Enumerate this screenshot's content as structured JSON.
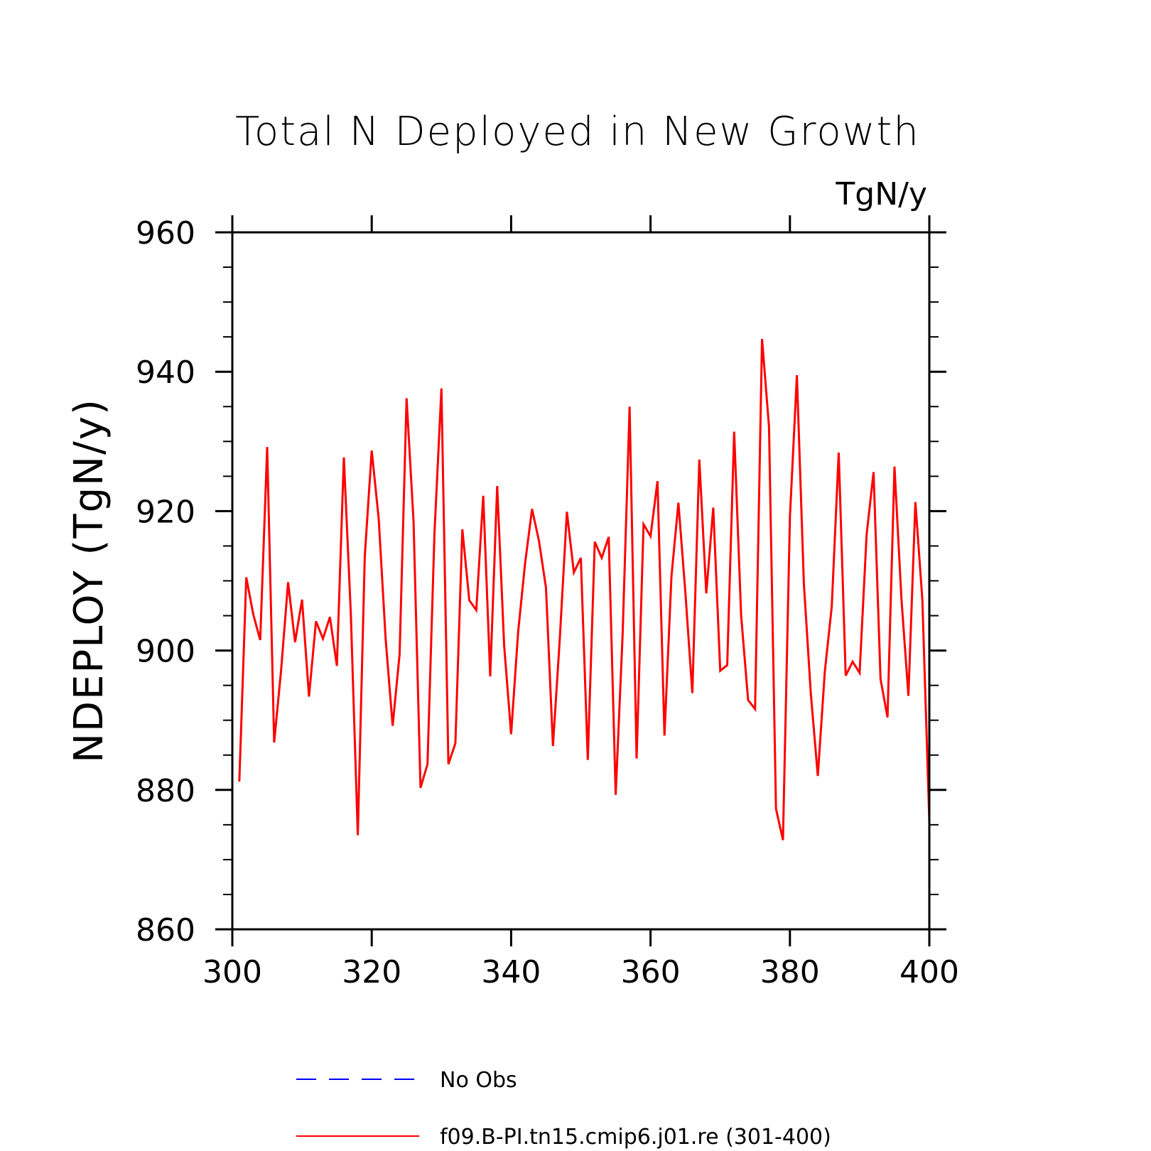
{
  "chart_data": {
    "type": "line",
    "title": "Total N Deployed in New Growth",
    "units": "TgN/y",
    "xlabel": "",
    "ylabel": "NDEPLOY  (TgN/y)",
    "xlim": [
      300,
      400
    ],
    "ylim": [
      860,
      960
    ],
    "x_ticks": [
      300,
      320,
      340,
      360,
      380,
      400
    ],
    "y_ticks": [
      860,
      880,
      900,
      920,
      940,
      960
    ],
    "x_minor_step": 0,
    "y_minor_step": 5,
    "grid": false,
    "legend_position": "bottom",
    "series": [
      {
        "name": "No Obs",
        "color": "#0000ff",
        "dash": "dashed",
        "x": [],
        "values": []
      },
      {
        "name": "f09.B-PI.tn15.cmip6.j01.re (301-400)",
        "color": "#ff0000",
        "dash": "solid",
        "x": [
          301,
          302,
          303,
          304,
          305,
          306,
          307,
          308,
          309,
          310,
          311,
          312,
          313,
          314,
          315,
          316,
          317,
          318,
          319,
          320,
          321,
          322,
          323,
          324,
          325,
          326,
          327,
          328,
          329,
          330,
          331,
          332,
          333,
          334,
          335,
          336,
          337,
          338,
          339,
          340,
          341,
          342,
          343,
          344,
          345,
          346,
          347,
          348,
          349,
          350,
          351,
          352,
          353,
          354,
          355,
          356,
          357,
          358,
          359,
          360,
          361,
          362,
          363,
          364,
          365,
          366,
          367,
          368,
          369,
          370,
          371,
          372,
          373,
          374,
          375,
          376,
          377,
          378,
          379,
          380,
          381,
          382,
          383,
          384,
          385,
          386,
          387,
          388,
          389,
          390,
          391,
          392,
          393,
          394,
          395,
          396,
          397,
          398,
          399,
          400
        ],
        "values": [
          881.2,
          910.5,
          905.2,
          901.5,
          929.2,
          886.8,
          897.2,
          909.8,
          901.2,
          907.3,
          893.4,
          904.2,
          901.7,
          904.8,
          897.8,
          927.7,
          905.3,
          873.5,
          913.5,
          928.7,
          918.9,
          901.6,
          889.2,
          899.5,
          936.2,
          918.5,
          880.3,
          883.7,
          916.8,
          937.6,
          883.7,
          886.7,
          917.4,
          907.2,
          905.8,
          922.2,
          896.3,
          923.6,
          900.7,
          888.0,
          902.6,
          912.5,
          920.3,
          915.7,
          909.0,
          886.3,
          902.0,
          919.9,
          911.2,
          913.3,
          884.3,
          915.6,
          913.3,
          916.3,
          879.3,
          902.4,
          935.0,
          884.5,
          918.1,
          916.4,
          924.3,
          887.8,
          910.6,
          921.2,
          908.3,
          893.9,
          927.4,
          908.2,
          920.5,
          897.1,
          897.9,
          931.4,
          905.0,
          892.9,
          891.6,
          944.7,
          932.1,
          877.3,
          872.8,
          919.2,
          939.5,
          909.6,
          893.8,
          882.0,
          896.9,
          906.3,
          928.4,
          896.4,
          898.4,
          896.8,
          916.6,
          925.6,
          895.9,
          890.4,
          926.4,
          907.4,
          893.5,
          921.3,
          907.3,
          875.5
        ]
      }
    ]
  }
}
